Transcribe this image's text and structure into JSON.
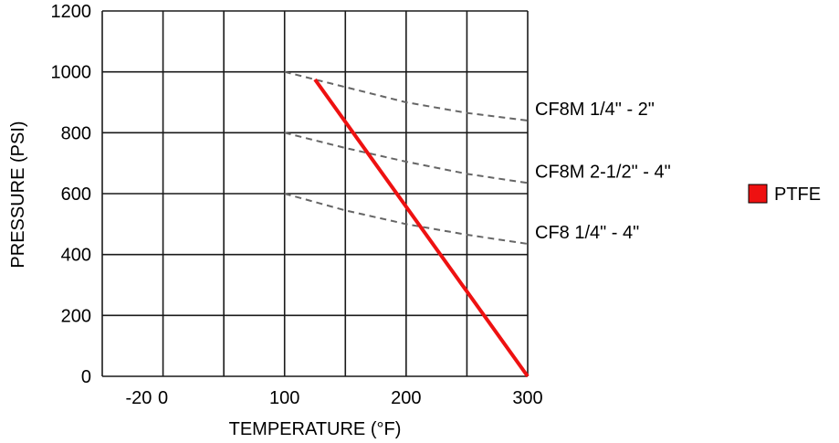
{
  "chart_data": {
    "type": "line",
    "xlabel": "TEMPERATURE (°F)",
    "ylabel": "PRESSURE (PSI)",
    "xlim": [
      -50,
      300
    ],
    "ylim": [
      0,
      1200
    ],
    "x_ticks": [
      {
        "value": -20,
        "label": "-20"
      },
      {
        "value": 0,
        "label": "0"
      },
      {
        "value": 100,
        "label": "100"
      },
      {
        "value": 200,
        "label": "200"
      },
      {
        "value": 300,
        "label": "300"
      }
    ],
    "y_ticks": [
      {
        "value": 0,
        "label": "0"
      },
      {
        "value": 200,
        "label": "200"
      },
      {
        "value": 400,
        "label": "400"
      },
      {
        "value": 600,
        "label": "600"
      },
      {
        "value": 800,
        "label": "800"
      },
      {
        "value": 1000,
        "label": "1000"
      },
      {
        "value": 1200,
        "label": "1200"
      }
    ],
    "grid_x": [
      -50,
      0,
      50,
      100,
      150,
      200,
      250,
      300
    ],
    "grid_y": [
      0,
      200,
      400,
      600,
      800,
      1000,
      1200
    ],
    "grid": true,
    "legend_position": "right",
    "series": [
      {
        "name": "CF8M 1/4\" - 2\"",
        "style": "dashed",
        "color": "#666666",
        "x": [
          100,
          150,
          200,
          250,
          300
        ],
        "y": [
          1000,
          950,
          900,
          865,
          840
        ]
      },
      {
        "name": "CF8M 2-1/2\" - 4\"",
        "style": "dashed",
        "color": "#666666",
        "x": [
          100,
          150,
          200,
          250,
          300
        ],
        "y": [
          800,
          750,
          705,
          665,
          635
        ]
      },
      {
        "name": "CF8 1/4\" - 4\"",
        "style": "dashed",
        "color": "#666666",
        "x": [
          100,
          150,
          200,
          250,
          300
        ],
        "y": [
          600,
          545,
          500,
          465,
          435
        ]
      },
      {
        "name": "PTFE",
        "style": "solid",
        "color": "#ee1111",
        "x": [
          125,
          300
        ],
        "y": [
          975,
          0
        ]
      }
    ],
    "legend": [
      {
        "label": "PTFE",
        "color": "#ee1111"
      }
    ]
  }
}
